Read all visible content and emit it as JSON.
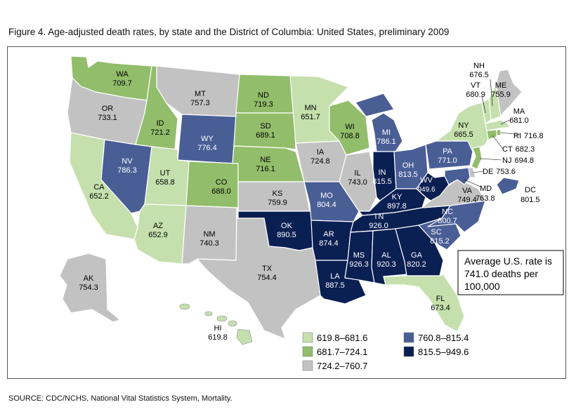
{
  "title": "Figure 4. Age-adjusted death rates, by state and the District of Columbia: United States, preliminary 2009",
  "source": "SOURCE: CDC/NCHS, National Vital Statistics System, Mortality.",
  "note": {
    "line1": "Average U.S. rate is",
    "line2": "741.0 deaths per",
    "line3": "100,000"
  },
  "legend": [
    {
      "range": "619.8–681.6",
      "color": "#c5e0ad"
    },
    {
      "range": "681.7–724.1",
      "color": "#92bd6a"
    },
    {
      "range": "724.2–760.7",
      "color": "#c2c2c2"
    },
    {
      "range": "760.8–815.4",
      "color": "#4a5e96"
    },
    {
      "range": "815.5–949.6",
      "color": "#0a1f52"
    }
  ],
  "states": {
    "WA": {
      "abbr": "WA",
      "rate": "709.7"
    },
    "OR": {
      "abbr": "OR",
      "rate": "733.1"
    },
    "CA": {
      "abbr": "CA",
      "rate": "652.2"
    },
    "ID": {
      "abbr": "ID",
      "rate": "721.2"
    },
    "NV": {
      "abbr": "NV",
      "rate": "786.3"
    },
    "MT": {
      "abbr": "MT",
      "rate": "757.3"
    },
    "WY": {
      "abbr": "WY",
      "rate": "776.4"
    },
    "UT": {
      "abbr": "UT",
      "rate": "658.8"
    },
    "AZ": {
      "abbr": "AZ",
      "rate": "652.9"
    },
    "CO": {
      "abbr": "CO",
      "rate": "688.0"
    },
    "NM": {
      "abbr": "NM",
      "rate": "740.3"
    },
    "ND": {
      "abbr": "ND",
      "rate": "719.3"
    },
    "SD": {
      "abbr": "SD",
      "rate": "689.1"
    },
    "NE": {
      "abbr": "NE",
      "rate": "716.1"
    },
    "KS": {
      "abbr": "KS",
      "rate": "759.9"
    },
    "OK": {
      "abbr": "OK",
      "rate": "890.5"
    },
    "TX": {
      "abbr": "TX",
      "rate": "754.4"
    },
    "MN": {
      "abbr": "MN",
      "rate": "651.7"
    },
    "IA": {
      "abbr": "IA",
      "rate": "724.8"
    },
    "MO": {
      "abbr": "MO",
      "rate": "804.4"
    },
    "AR": {
      "abbr": "AR",
      "rate": "874.4"
    },
    "LA": {
      "abbr": "LA",
      "rate": "887.5"
    },
    "WI": {
      "abbr": "WI",
      "rate": "708.8"
    },
    "IL": {
      "abbr": "IL",
      "rate": "743.0"
    },
    "MI": {
      "abbr": "MI",
      "rate": "786.1"
    },
    "IN": {
      "abbr": "IN",
      "rate": "815.5"
    },
    "OH": {
      "abbr": "OH",
      "rate": "813.5"
    },
    "KY": {
      "abbr": "KY",
      "rate": "897.8"
    },
    "TN": {
      "abbr": "TN",
      "rate": "926.0"
    },
    "MS": {
      "abbr": "MS",
      "rate": "926.3"
    },
    "AL": {
      "abbr": "AL",
      "rate": "920.3"
    },
    "GA": {
      "abbr": "GA",
      "rate": "820.2"
    },
    "FL": {
      "abbr": "FL",
      "rate": "673.4"
    },
    "SC": {
      "abbr": "SC",
      "rate": "815.2"
    },
    "NC": {
      "abbr": "NC",
      "rate": "800.7"
    },
    "VA": {
      "abbr": "VA",
      "rate": "749.4"
    },
    "WV": {
      "abbr": "WV",
      "rate": "949.6"
    },
    "PA": {
      "abbr": "PA",
      "rate": "771.0"
    },
    "NY": {
      "abbr": "NY",
      "rate": "665.5"
    },
    "VT": {
      "abbr": "VT",
      "rate": "680.9"
    },
    "NH": {
      "abbr": "NH",
      "rate": "676.5"
    },
    "ME": {
      "abbr": "ME",
      "rate": "755.9"
    },
    "MA": {
      "abbr": "MA",
      "rate": "681.0"
    },
    "RI": {
      "abbr": "RI",
      "rate": "716.8"
    },
    "CT": {
      "abbr": "CT",
      "rate": "682.3"
    },
    "NJ": {
      "abbr": "NJ",
      "rate": "694.8"
    },
    "DE": {
      "abbr": "DE",
      "rate": "753.6"
    },
    "MD": {
      "abbr": "MD",
      "rate": "763.8"
    },
    "DC": {
      "abbr": "DC",
      "rate": "801.5"
    },
    "AK": {
      "abbr": "AK",
      "rate": "754.3"
    },
    "HI": {
      "abbr": "HI",
      "rate": "619.8"
    }
  }
}
